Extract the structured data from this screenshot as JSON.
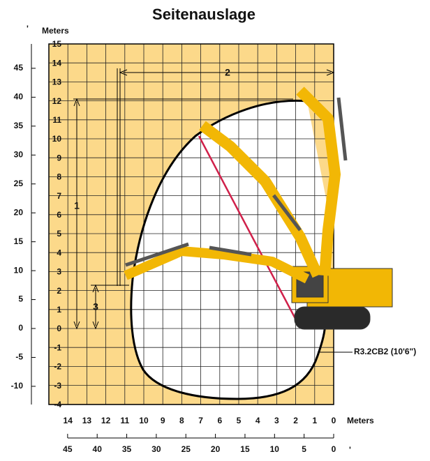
{
  "title": "Seitenauslage",
  "meters_y": {
    "label": "Meters",
    "ticks": [
      15,
      14,
      13,
      12,
      11,
      10,
      9,
      8,
      7,
      6,
      5,
      4,
      3,
      2,
      1,
      0,
      -1,
      -2,
      -3,
      -4
    ]
  },
  "meters_x": {
    "label": "Meters",
    "ticks": [
      14,
      13,
      12,
      11,
      10,
      9,
      8,
      7,
      6,
      5,
      4,
      3,
      2,
      1,
      0
    ]
  },
  "feet_y": {
    "label": "'",
    "ticks": [
      45,
      40,
      35,
      30,
      25,
      20,
      15,
      10,
      5,
      0,
      -5,
      -10
    ]
  },
  "feet_x": {
    "label": "'",
    "ticks": [
      45,
      40,
      35,
      30,
      25,
      20,
      15,
      10,
      5,
      0
    ]
  },
  "dimensions": [
    "1",
    "2",
    "3"
  ],
  "boom_label": "R3.2CB2 (10'6\")"
}
